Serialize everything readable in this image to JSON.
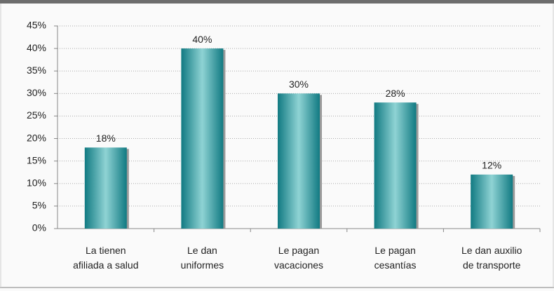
{
  "chart_data": {
    "type": "bar",
    "categories": [
      [
        "La tienen",
        "afiliada a salud"
      ],
      [
        "Le dan",
        "uniformes"
      ],
      [
        "Le pagan",
        "vacaciones"
      ],
      [
        "Le pagan",
        "cesantías"
      ],
      [
        "Le dan auxilio",
        "de transporte"
      ]
    ],
    "values": [
      18,
      40,
      30,
      28,
      12
    ],
    "value_labels": [
      "18%",
      "40%",
      "30%",
      "28%",
      "12%"
    ],
    "color": "#2a9aa0",
    "ylim": [
      0,
      45
    ],
    "yticks": [
      {
        "value": 0,
        "label": "0%"
      },
      {
        "value": 5,
        "label": "5%"
      },
      {
        "value": 10,
        "label": "10%"
      },
      {
        "value": 15,
        "label": "15%"
      },
      {
        "value": 20,
        "label": "20%"
      },
      {
        "value": 25,
        "label": "25%"
      },
      {
        "value": 30,
        "label": "30%"
      },
      {
        "value": 35,
        "label": "35%"
      },
      {
        "value": 40,
        "label": "40%"
      },
      {
        "value": 45,
        "label": "45%"
      }
    ],
    "grid": true
  }
}
